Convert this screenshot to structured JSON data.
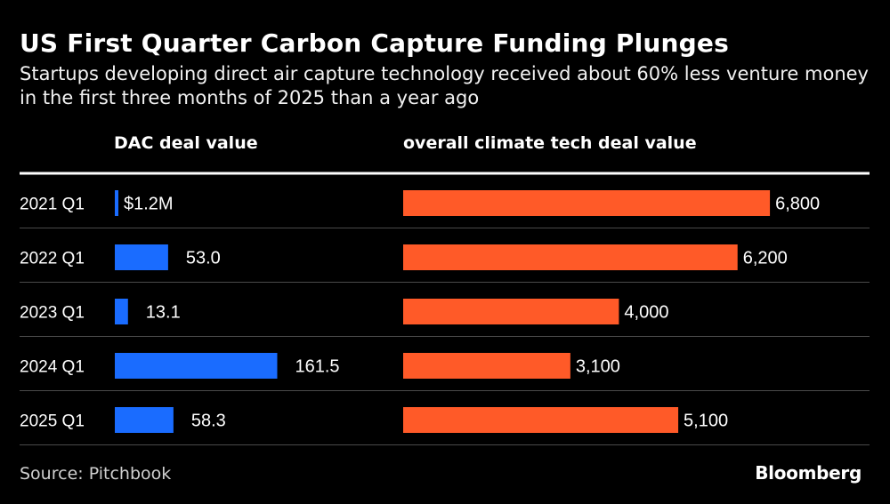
{
  "chart_data": {
    "type": "bar",
    "title": "US First Quarter Carbon Capture Funding Plunges",
    "subtitle": "Startups developing direct air capture technology received about 60% less venture money in the first three months of 2025 than a year ago",
    "categories": [
      "2021 Q1",
      "2022 Q1",
      "2023 Q1",
      "2024 Q1",
      "2025 Q1"
    ],
    "series": [
      {
        "name": "DAC deal value",
        "values": [
          1.2,
          53.0,
          13.1,
          161.5,
          58.3
        ],
        "labels": [
          "$1.2M",
          "53.0",
          "13.1",
          "161.5",
          "58.3"
        ],
        "color": "#1a6cff"
      },
      {
        "name": "overall climate tech deal value",
        "values": [
          6800,
          6200,
          4000,
          3100,
          5100
        ],
        "labels": [
          "6,800",
          "6,200",
          "4,000",
          "3,100",
          "5,100"
        ],
        "color": "#ff5a28"
      }
    ],
    "source": "Source: Pitchbook",
    "brand": "Bloomberg"
  }
}
